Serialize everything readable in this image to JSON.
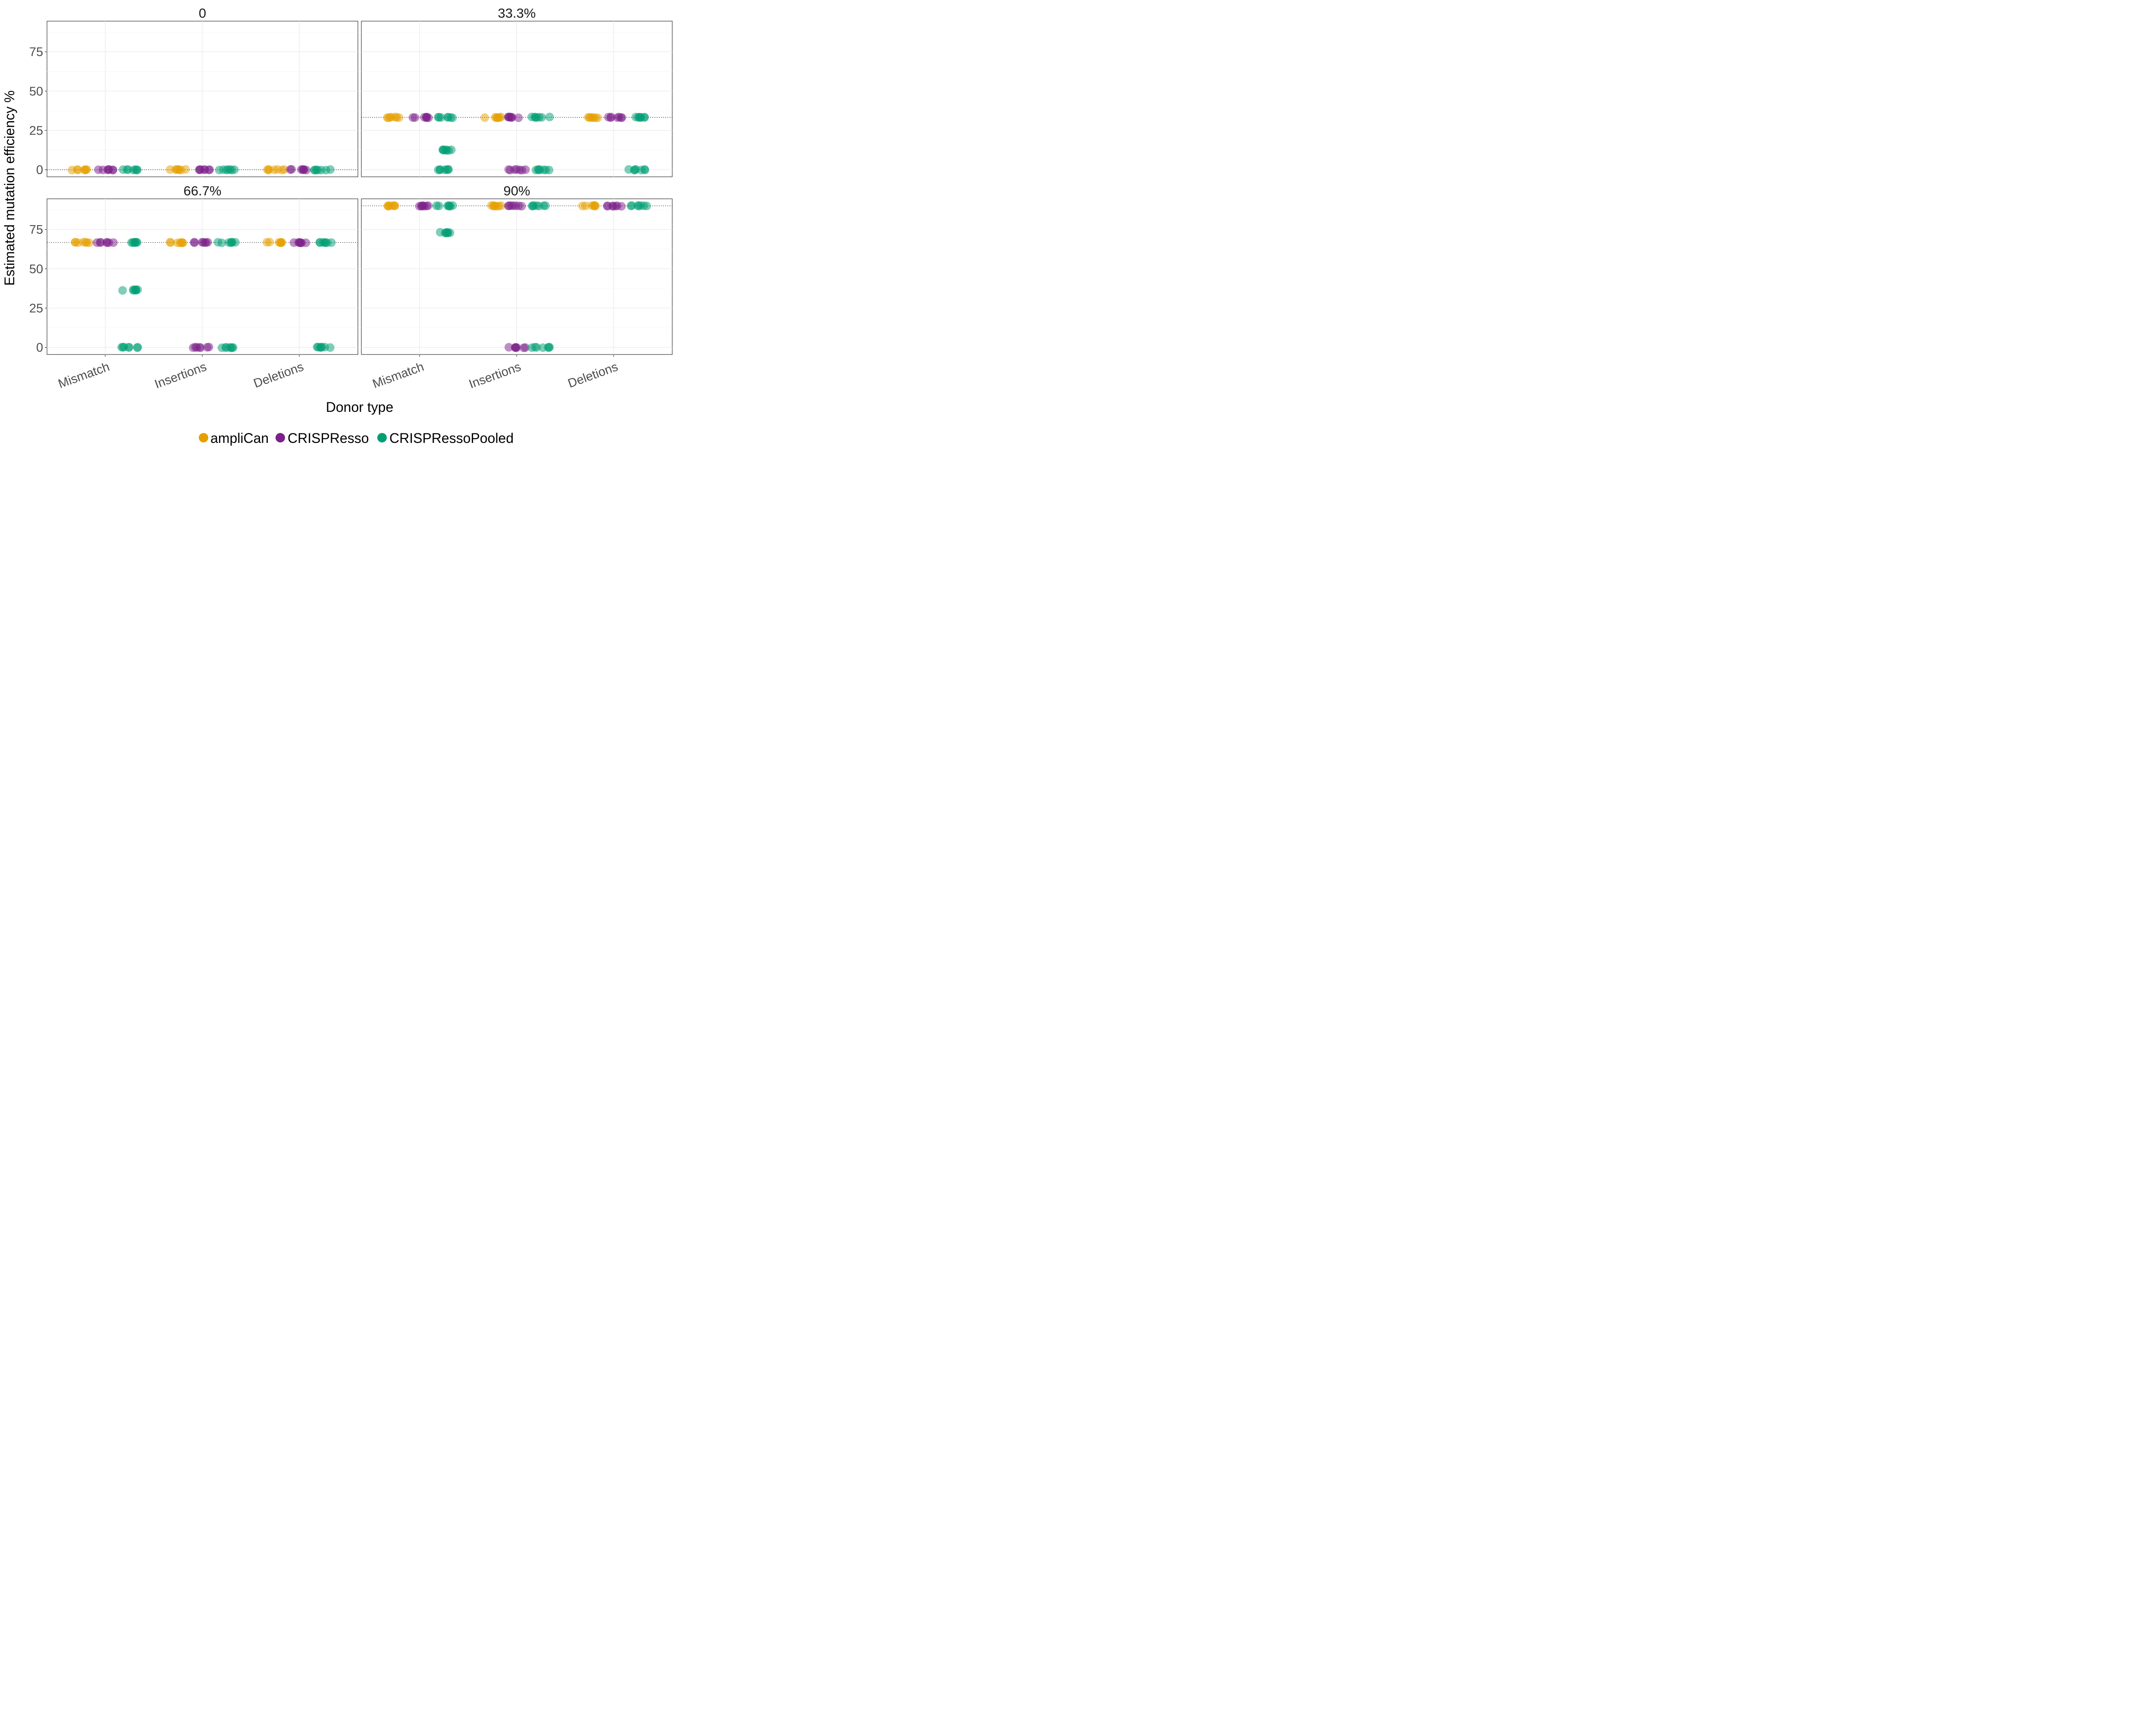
{
  "chart_data": {
    "type": "scatter",
    "subtype": "faceted jittered strip plot",
    "xlabel": "Donor type",
    "ylabel": "Estimated mutation efficiency %",
    "categories": [
      "Mismatch",
      "Insertions",
      "Deletions"
    ],
    "y_ticks": [
      0,
      25,
      50,
      75
    ],
    "ylim": [
      -4.5,
      94.5
    ],
    "grid": true,
    "legend_position": "bottom",
    "series": [
      {
        "name": "ampliCan",
        "color": "#E69F00"
      },
      {
        "name": "CRISPResso",
        "color": "#7B1F8A"
      },
      {
        "name": "CRISPRessoPooled",
        "color": "#009E73"
      }
    ],
    "facets": [
      {
        "label": "0",
        "reference": 0,
        "groups": [
          {
            "category": "Mismatch",
            "series": "ampliCan",
            "values": [
              0
            ]
          },
          {
            "category": "Mismatch",
            "series": "CRISPResso",
            "values": [
              0
            ]
          },
          {
            "category": "Mismatch",
            "series": "CRISPRessoPooled",
            "values": [
              0
            ]
          },
          {
            "category": "Insertions",
            "series": "ampliCan",
            "values": [
              0
            ]
          },
          {
            "category": "Insertions",
            "series": "CRISPResso",
            "values": [
              0
            ]
          },
          {
            "category": "Insertions",
            "series": "CRISPRessoPooled",
            "values": [
              0
            ]
          },
          {
            "category": "Deletions",
            "series": "ampliCan",
            "values": [
              0
            ]
          },
          {
            "category": "Deletions",
            "series": "CRISPResso",
            "values": [
              0
            ]
          },
          {
            "category": "Deletions",
            "series": "CRISPRessoPooled",
            "values": [
              0
            ]
          }
        ]
      },
      {
        "label": "33.3%",
        "reference": 33.3,
        "groups": [
          {
            "category": "Mismatch",
            "series": "ampliCan",
            "values": [
              33.3
            ]
          },
          {
            "category": "Mismatch",
            "series": "CRISPResso",
            "values": [
              33.3
            ]
          },
          {
            "category": "Mismatch",
            "series": "CRISPRessoPooled",
            "values": [
              33.3,
              12.5,
              0
            ]
          },
          {
            "category": "Insertions",
            "series": "ampliCan",
            "values": [
              33.3
            ]
          },
          {
            "category": "Insertions",
            "series": "CRISPResso",
            "values": [
              33.3,
              0
            ]
          },
          {
            "category": "Insertions",
            "series": "CRISPRessoPooled",
            "values": [
              33.3,
              0
            ]
          },
          {
            "category": "Deletions",
            "series": "ampliCan",
            "values": [
              33.3
            ]
          },
          {
            "category": "Deletions",
            "series": "CRISPResso",
            "values": [
              33.3
            ]
          },
          {
            "category": "Deletions",
            "series": "CRISPRessoPooled",
            "values": [
              33.3,
              0
            ]
          }
        ]
      },
      {
        "label": "66.7%",
        "reference": 66.7,
        "groups": [
          {
            "category": "Mismatch",
            "series": "ampliCan",
            "values": [
              66.7
            ]
          },
          {
            "category": "Mismatch",
            "series": "CRISPResso",
            "values": [
              66.7
            ]
          },
          {
            "category": "Mismatch",
            "series": "CRISPRessoPooled",
            "values": [
              66.7,
              36.5,
              0
            ]
          },
          {
            "category": "Insertions",
            "series": "ampliCan",
            "values": [
              66.7
            ]
          },
          {
            "category": "Insertions",
            "series": "CRISPResso",
            "values": [
              66.7,
              0
            ]
          },
          {
            "category": "Insertions",
            "series": "CRISPRessoPooled",
            "values": [
              66.7,
              0
            ]
          },
          {
            "category": "Deletions",
            "series": "ampliCan",
            "values": [
              66.7
            ]
          },
          {
            "category": "Deletions",
            "series": "CRISPResso",
            "values": [
              66.7
            ]
          },
          {
            "category": "Deletions",
            "series": "CRISPRessoPooled",
            "values": [
              66.7,
              0
            ]
          }
        ]
      },
      {
        "label": "90%",
        "reference": 90,
        "groups": [
          {
            "category": "Mismatch",
            "series": "ampliCan",
            "values": [
              90
            ]
          },
          {
            "category": "Mismatch",
            "series": "CRISPResso",
            "values": [
              90
            ]
          },
          {
            "category": "Mismatch",
            "series": "CRISPRessoPooled",
            "values": [
              90,
              73
            ]
          },
          {
            "category": "Insertions",
            "series": "ampliCan",
            "values": [
              90
            ]
          },
          {
            "category": "Insertions",
            "series": "CRISPResso",
            "values": [
              90,
              0
            ]
          },
          {
            "category": "Insertions",
            "series": "CRISPRessoPooled",
            "values": [
              90,
              0
            ]
          },
          {
            "category": "Deletions",
            "series": "ampliCan",
            "values": [
              90
            ]
          },
          {
            "category": "Deletions",
            "series": "CRISPResso",
            "values": [
              90
            ]
          },
          {
            "category": "Deletions",
            "series": "CRISPRessoPooled",
            "values": [
              90
            ]
          }
        ]
      }
    ]
  }
}
